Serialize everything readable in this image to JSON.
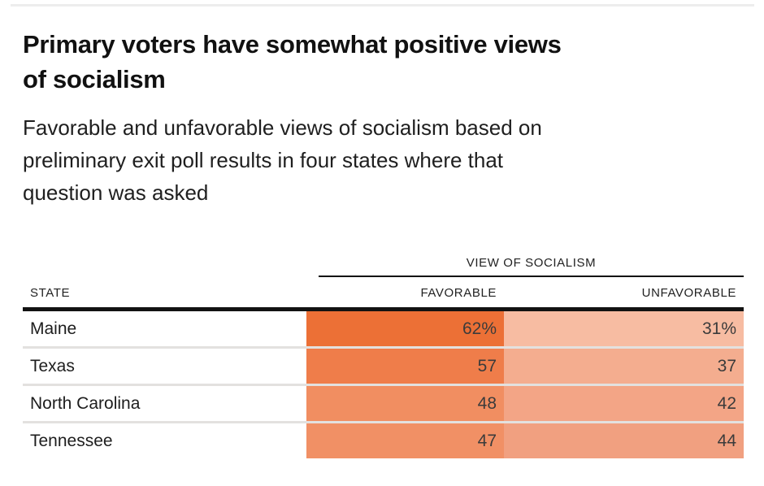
{
  "header": {
    "title_line1": "Primary voters have somewhat positive views",
    "title_line2": "of socialism",
    "subtitle_line1": "Favorable and unfavorable views of socialism based on",
    "subtitle_line2": "preliminary exit poll results in four states where that",
    "subtitle_line3": "question was asked"
  },
  "table": {
    "group_header": "VIEW OF SOCIALISM",
    "columns": [
      "STATE",
      "FAVORABLE",
      "UNFAVORABLE"
    ],
    "rows": [
      {
        "state": "Maine",
        "fav_label": "62%",
        "unfav_label": "31%",
        "fav_color": "#ec7036",
        "unfav_color": "#f7bca2"
      },
      {
        "state": "Texas",
        "fav_label": "57",
        "unfav_label": "37",
        "fav_color": "#ef7d4a",
        "unfav_color": "#f4ad8f"
      },
      {
        "state": "North Carolina",
        "fav_label": "48",
        "unfav_label": "42",
        "fav_color": "#f18e61",
        "unfav_color": "#f3a586"
      },
      {
        "state": "Tennessee",
        "fav_label": "47",
        "unfav_label": "44",
        "fav_color": "#f19065",
        "unfav_color": "#f1a080"
      }
    ]
  },
  "colors": {
    "rule_dark": "#121212",
    "rule_light": "#ededed",
    "row_separator": "#e3e1df",
    "number_text": "#3b3b3b"
  },
  "chart_data": {
    "type": "table",
    "title": "Primary voters have somewhat positive views of socialism",
    "subtitle": "Favorable and unfavorable views of socialism based on preliminary exit poll results in four states where that question was asked",
    "group_header": "VIEW OF SOCIALISM",
    "columns": [
      "STATE",
      "FAVORABLE",
      "UNFAVORABLE"
    ],
    "categories": [
      "Maine",
      "Texas",
      "North Carolina",
      "Tennessee"
    ],
    "series": [
      {
        "name": "Favorable",
        "values": [
          62,
          57,
          48,
          47
        ]
      },
      {
        "name": "Unfavorable",
        "values": [
          31,
          37,
          42,
          44
        ]
      }
    ],
    "value_unit": "%",
    "shading": "cell color intensity proportional to value, orange scale"
  }
}
